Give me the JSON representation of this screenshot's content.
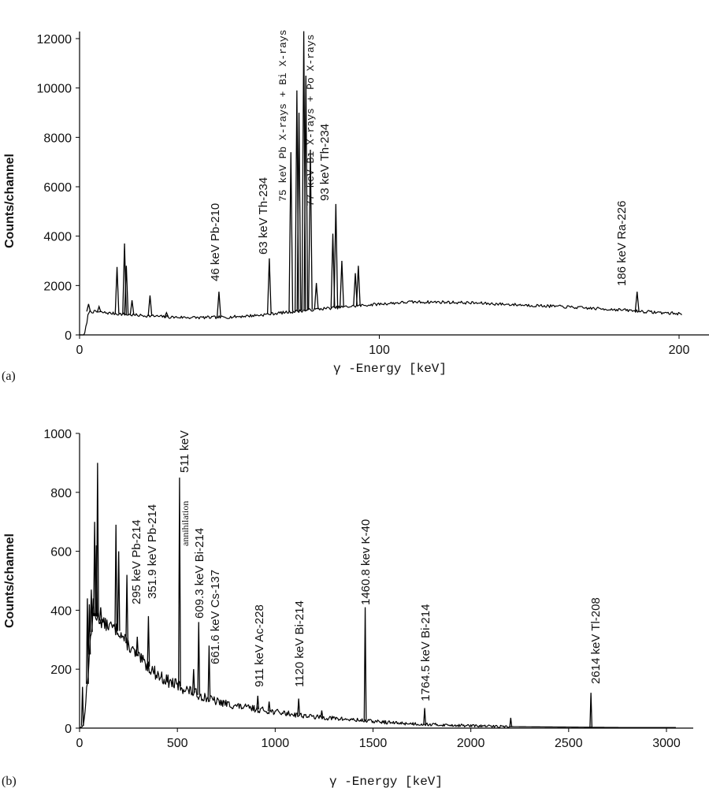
{
  "chart_data": [
    {
      "type": "line",
      "panel_label": "(a)",
      "xlabel": "γ -Energy [keV]",
      "ylabel": "Counts/channel",
      "xlim": [
        0,
        210
      ],
      "ylim": [
        0,
        12000
      ],
      "xticks": [
        0,
        100,
        200
      ],
      "yticks": [
        0,
        2000,
        4000,
        6000,
        8000,
        10000,
        12000
      ],
      "grid": false,
      "baseline": [
        [
          0,
          0
        ],
        [
          1.5,
          0
        ],
        [
          2.5,
          500
        ],
        [
          3,
          950
        ],
        [
          6,
          930
        ],
        [
          10,
          880
        ],
        [
          15,
          830
        ],
        [
          20,
          790
        ],
        [
          25,
          760
        ],
        [
          30,
          720
        ],
        [
          40,
          700
        ],
        [
          50,
          720
        ],
        [
          60,
          800
        ],
        [
          66,
          880
        ],
        [
          72,
          950
        ],
        [
          80,
          1050
        ],
        [
          90,
          1150
        ],
        [
          100,
          1250
        ],
        [
          110,
          1330
        ],
        [
          120,
          1330
        ],
        [
          130,
          1300
        ],
        [
          140,
          1250
        ],
        [
          150,
          1200
        ],
        [
          160,
          1150
        ],
        [
          170,
          1080
        ],
        [
          180,
          1020
        ],
        [
          190,
          930
        ],
        [
          200,
          860
        ],
        [
          201,
          850
        ]
      ],
      "peaks": [
        [
          3,
          1250
        ],
        [
          6.5,
          1150
        ],
        [
          12.5,
          2750
        ],
        [
          15,
          3700
        ],
        [
          15.6,
          2800
        ],
        [
          17.5,
          1400
        ],
        [
          23.5,
          1600
        ],
        [
          29,
          900
        ],
        [
          46.5,
          1750
        ],
        [
          63.3,
          3100
        ],
        [
          70.5,
          7400
        ],
        [
          72.5,
          9900
        ],
        [
          73.2,
          9000
        ],
        [
          74.8,
          12300
        ],
        [
          75.5,
          10500
        ],
        [
          77,
          7500
        ],
        [
          79,
          2100
        ],
        [
          84.5,
          4100
        ],
        [
          85.5,
          5300
        ],
        [
          87.5,
          3000
        ],
        [
          92,
          2500
        ],
        [
          93,
          2800
        ],
        [
          186,
          1750
        ]
      ],
      "annotations": [
        "46 keV Pb-210",
        "63 keV Th-234",
        "75 keV Pb X-rays + Bi X-rays",
        "77 keV Bi X-rays + Po X-rays",
        "93 keV Th-234",
        "186 keV Ra-226"
      ]
    },
    {
      "type": "line",
      "panel_label": "(b)",
      "xlabel": "γ -Energy [keV]",
      "ylabel": "Counts/channel",
      "xlim": [
        0,
        3150
      ],
      "ylim": [
        0,
        1000
      ],
      "xticks": [
        0,
        500,
        1000,
        1500,
        2000,
        2500,
        3000
      ],
      "yticks": [
        0,
        200,
        400,
        600,
        800,
        1000
      ],
      "grid": false,
      "baseline": [
        [
          0,
          0
        ],
        [
          20,
          10
        ],
        [
          40,
          150
        ],
        [
          55,
          300
        ],
        [
          70,
          380
        ],
        [
          90,
          380
        ],
        [
          120,
          355
        ],
        [
          160,
          345
        ],
        [
          200,
          330
        ],
        [
          250,
          280
        ],
        [
          300,
          240
        ],
        [
          350,
          210
        ],
        [
          400,
          180
        ],
        [
          450,
          160
        ],
        [
          500,
          145
        ],
        [
          600,
          115
        ],
        [
          700,
          90
        ],
        [
          800,
          75
        ],
        [
          900,
          65
        ],
        [
          1000,
          55
        ],
        [
          1200,
          38
        ],
        [
          1400,
          28
        ],
        [
          1600,
          18
        ],
        [
          1800,
          12
        ],
        [
          2000,
          8
        ],
        [
          2200,
          5
        ],
        [
          2400,
          4
        ],
        [
          2600,
          3
        ],
        [
          2800,
          2
        ],
        [
          3000,
          2
        ],
        [
          3050,
          2
        ]
      ],
      "peaks": [
        [
          15,
          140
        ],
        [
          40,
          440
        ],
        [
          50,
          420
        ],
        [
          60,
          470
        ],
        [
          70,
          440
        ],
        [
          77,
          700
        ],
        [
          86,
          620
        ],
        [
          92,
          900
        ],
        [
          108,
          410
        ],
        [
          186,
          690
        ],
        [
          200,
          600
        ],
        [
          242,
          520
        ],
        [
          295,
          310
        ],
        [
          352,
          380
        ],
        [
          511,
          850
        ],
        [
          583,
          200
        ],
        [
          609,
          360
        ],
        [
          662,
          280
        ],
        [
          911,
          110
        ],
        [
          969,
          90
        ],
        [
          1120,
          100
        ],
        [
          1238,
          60
        ],
        [
          1460,
          410
        ],
        [
          1764,
          68
        ],
        [
          2204,
          35
        ],
        [
          2614,
          120
        ]
      ],
      "annotations": [
        "295 keV Pb-214",
        "351.9 keV Pb-214",
        "annihilation",
        "511 keV",
        "609.3 keV Bi-214",
        "661.6 keV Cs-137",
        "911 keV Ac-228",
        "1120 keV Bi-214",
        "1460.8 kev K-40",
        "1764.5 keV Bi-214",
        "2614 keV Tl-208"
      ]
    }
  ]
}
